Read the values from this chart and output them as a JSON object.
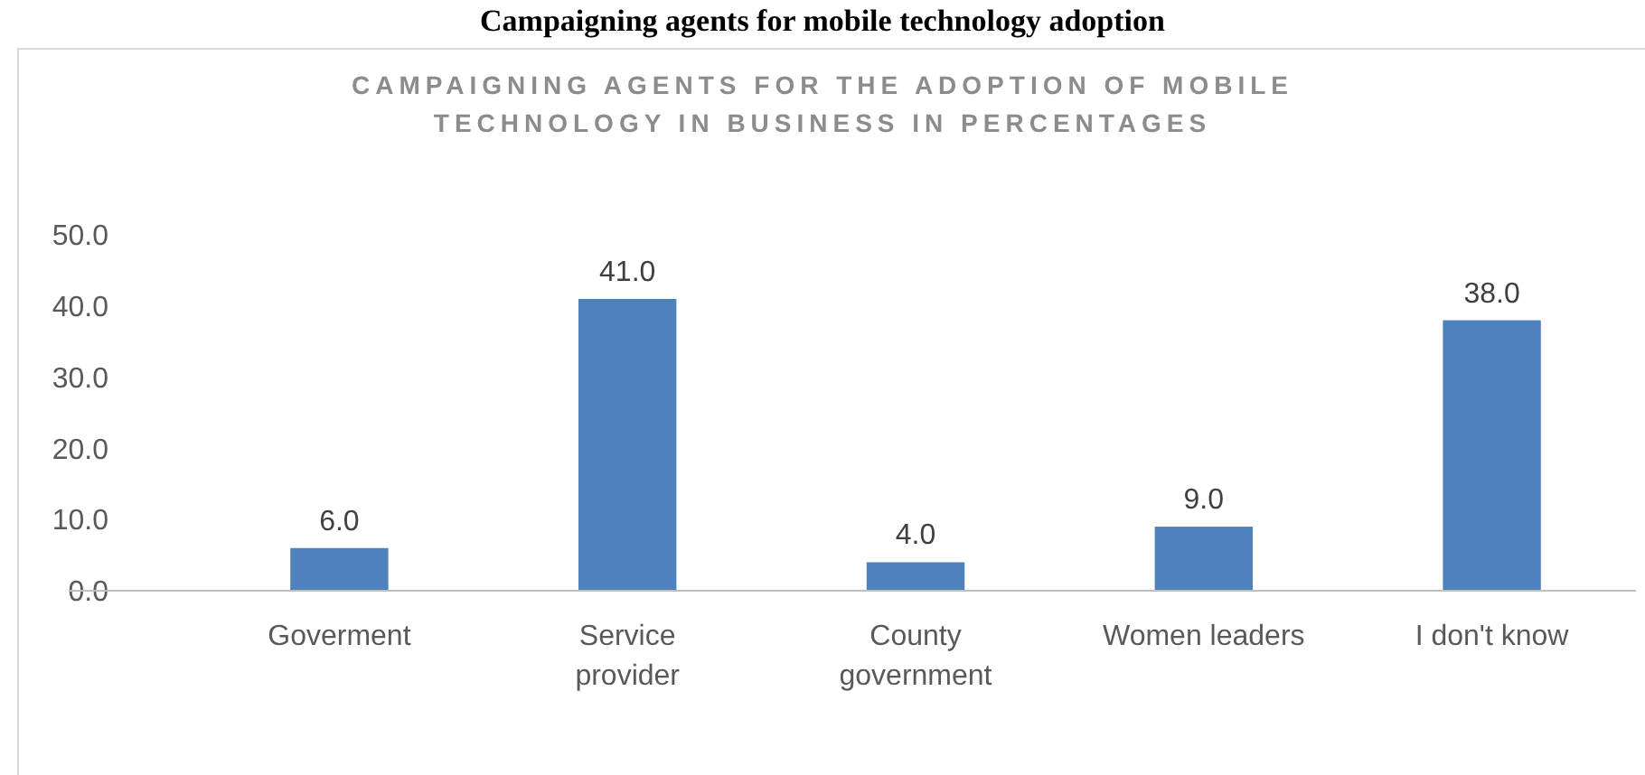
{
  "chart_data": {
    "type": "bar",
    "title": "Campaigning agents for mobile technology adoption",
    "subtitle": "CAMPAIGNING AGENTS FOR THE ADOPTION OF MOBILE TECHNOLOGY IN BUSINESS IN PERCENTAGES",
    "categories": [
      "Goverment",
      "Service provider",
      "County government",
      "Women leaders",
      "I don't know"
    ],
    "values": [
      6,
      41,
      4,
      9,
      38
    ],
    "value_labels": [
      "6.0",
      "41.0",
      "4.0",
      "9.0",
      "38.0"
    ],
    "color": "#4f81bd",
    "ylim": [
      0,
      50
    ],
    "yticks": [
      {
        "value": 0,
        "label": "0.0"
      },
      {
        "value": 10,
        "label": "10.0"
      },
      {
        "value": 20,
        "label": "20.0"
      },
      {
        "value": 30,
        "label": "30.0"
      },
      {
        "value": 40,
        "label": "40.0"
      },
      {
        "value": 50,
        "label": "50.0"
      }
    ]
  }
}
